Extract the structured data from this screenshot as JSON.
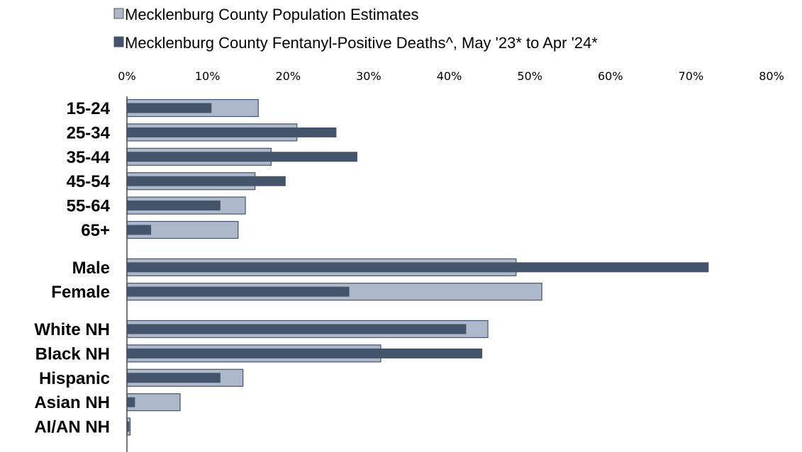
{
  "chart_data": {
    "type": "bar",
    "orientation": "horizontal",
    "categories": [
      "15-24",
      "25-34",
      "35-44",
      "45-54",
      "55-64",
      "65+",
      "Male",
      "Female",
      "White NH",
      "Black NH",
      "Hispanic",
      "Asian NH",
      "AI/AN NH"
    ],
    "groups": [
      [
        "15-24",
        "25-34",
        "35-44",
        "45-54",
        "55-64",
        "65+"
      ],
      [
        "Male",
        "Female"
      ],
      [
        "White NH",
        "Black NH",
        "Hispanic",
        "Asian NH",
        "AI/AN NH"
      ]
    ],
    "series": [
      {
        "name": "Mecklenburg County Population Estimates",
        "color": "#adb9ca",
        "values": [
          16.3,
          21.1,
          17.9,
          15.9,
          14.7,
          13.8,
          48.3,
          51.5,
          44.8,
          31.5,
          14.4,
          6.6,
          0.4
        ]
      },
      {
        "name": "Mecklenburg County Fentanyl-Positive Deaths^, May '23* to Apr '24*",
        "color": "#44546a",
        "values": [
          10.5,
          26.0,
          28.6,
          19.7,
          11.6,
          3.0,
          72.2,
          27.6,
          42.1,
          44.1,
          11.6,
          1.0,
          0.3
        ]
      }
    ],
    "x_axis": {
      "min": 0,
      "max": 80,
      "ticks": [
        "0%",
        "10%",
        "20%",
        "30%",
        "40%",
        "50%",
        "60%",
        "70%",
        "80%"
      ],
      "position": "top"
    },
    "legend": {
      "position": "top-left"
    },
    "grid": false
  }
}
